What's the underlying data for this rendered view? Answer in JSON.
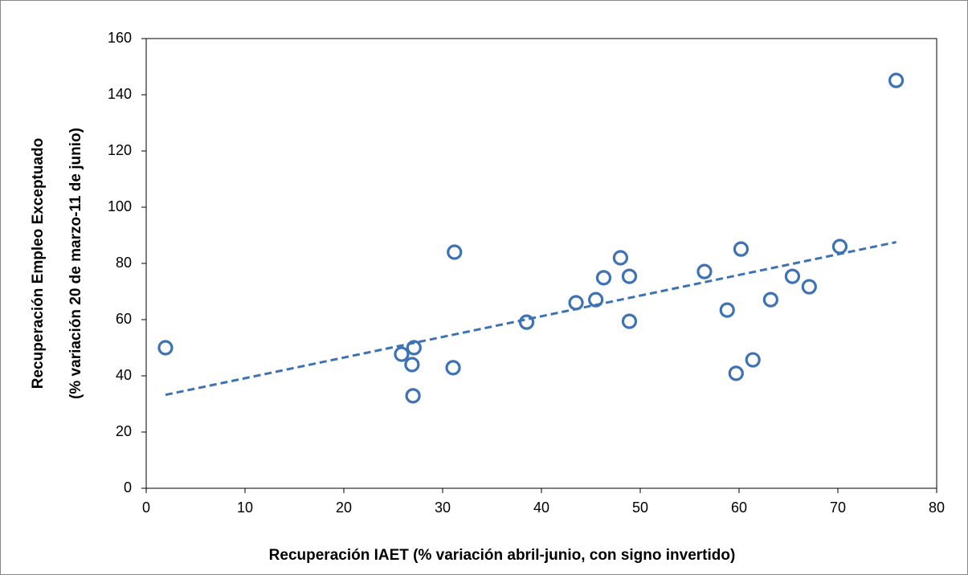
{
  "chart_data": {
    "type": "scatter",
    "xlabel": "Recuperación IAET (% variación abril-junio, con signo invertido)",
    "ylabel": [
      "Recuperación Empleo Exceptuado",
      "(% variación 20 de marzo-11 de junio)"
    ],
    "x": [
      1.95,
      25.85,
      27.1,
      26.9,
      27.0,
      31.06,
      31.2,
      38.5,
      43.5,
      45.5,
      46.3,
      48.0,
      48.9,
      48.9,
      56.5,
      58.8,
      59.7,
      60.2,
      61.4,
      63.2,
      65.4,
      67.1,
      70.2,
      75.9
    ],
    "values": [
      50,
      47.7,
      50,
      44,
      32.9,
      42.9,
      84,
      59.1,
      66,
      67.1,
      74.9,
      82,
      75.4,
      59.4,
      77.1,
      63.4,
      40.9,
      85.1,
      45.7,
      67.1,
      75.4,
      71.7,
      86,
      145.1
    ],
    "color": "#3d72b4",
    "trendline": true,
    "xlim": [
      0,
      80
    ],
    "xticks": [
      0,
      10,
      20,
      30,
      40,
      50,
      60,
      70,
      80
    ],
    "ylim": [
      0,
      160
    ],
    "yticks": [
      0,
      20,
      40,
      60,
      80,
      100,
      120,
      140,
      160
    ]
  }
}
